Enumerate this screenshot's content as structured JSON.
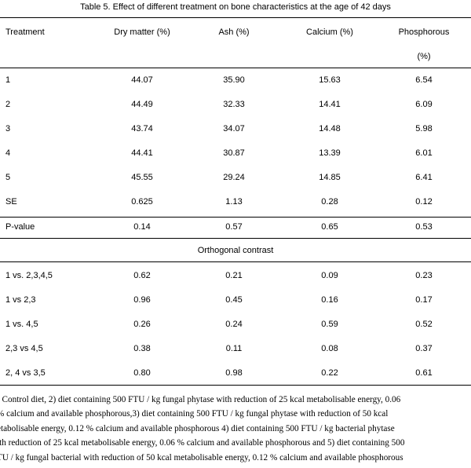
{
  "table": {
    "caption": "Table 5. Effect of different treatment on bone characteristics at the age of 42 days",
    "headers": {
      "treatment": "Treatment",
      "dry_matter": "Dry matter (%)",
      "ash": "Ash (%)",
      "calcium": "Calcium (%)",
      "phosphorous": "Phosphorous",
      "phosphorous_unit": "(%)"
    },
    "rows": [
      [
        "1",
        "44.07",
        "35.90",
        "15.63",
        "6.54"
      ],
      [
        "2",
        "44.49",
        "32.33",
        "14.41",
        "6.09"
      ],
      [
        "3",
        "43.74",
        "34.07",
        "14.48",
        "5.98"
      ],
      [
        "4",
        "44.41",
        "30.87",
        "13.39",
        "6.01"
      ],
      [
        "5",
        "45.55",
        "29.24",
        "14.85",
        "6.41"
      ],
      [
        "SE",
        "0.625",
        "1.13",
        "0.28",
        "0.12"
      ]
    ],
    "pvalue_row": [
      "P-value",
      "0.14",
      "0.57",
      "0.65",
      "0.53"
    ],
    "contrast_label": "Orthogonal contrast",
    "contrast_rows": [
      [
        "1 vs. 2,3,4,5",
        "0.62",
        "0.21",
        "0.09",
        "0.23"
      ],
      [
        "1 vs 2,3",
        "0.96",
        "0.45",
        "0.16",
        "0.17"
      ],
      [
        "1 vs. 4,5",
        "0.26",
        "0.24",
        "0.59",
        "0.52"
      ],
      [
        "2,3 vs 4,5",
        "0.38",
        "0.11",
        "0.08",
        "0.37"
      ],
      [
        "2, 4 vs 3,5",
        "0.80",
        "0.98",
        "0.22",
        "0.61"
      ]
    ]
  },
  "footnote_lines": [
    ") Control diet, 2) diet containing 500 FTU / kg fungal phytase with reduction of 25 kcal metabolisable energy, 0.06",
    "% calcium and available phosphorous,3) diet containing 500 FTU / kg fungal phytase with reduction of 50 kcal",
    "etabolisable energy, 0.12 % calcium and available phosphorous 4) diet containing 500 FTU / kg bacterial phytase",
    "ith reduction of 25 kcal metabolisable energy, 0.06 % calcium and available phosphorous and 5) diet containing 500",
    "TU / kg fungal bacterial with reduction of 50 kcal metabolisable energy, 0.12 % calcium and available phosphorous"
  ]
}
